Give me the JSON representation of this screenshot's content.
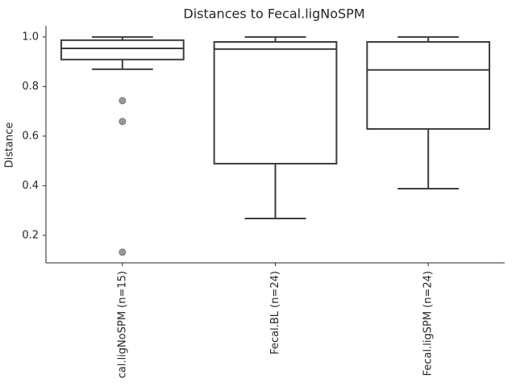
{
  "chart_data": {
    "type": "box",
    "title": "Distances to Fecal.ligNoSPM",
    "y_label": "Distance",
    "categories": [
      "cal.ligNoSPM (n=15)",
      "Fecal.BL (n=24)",
      "Fecal.ligSPM (n=24)"
    ],
    "whisker_low": [
      0.87,
      0.268,
      0.388
    ],
    "q1": [
      0.909,
      0.489,
      0.629
    ],
    "median": [
      0.954,
      0.951,
      0.867
    ],
    "q3": [
      0.987,
      0.98,
      0.98
    ],
    "whisker_high": [
      1.0,
      1.0,
      1.0
    ],
    "outliers": [
      [
        0.743,
        0.659,
        0.132
      ],
      [],
      []
    ],
    "color": "#3d3d3d",
    "outlier_color": "#999999",
    "ylim": [
      0.089,
      1.045
    ],
    "yticks": [
      0.2,
      0.4,
      0.6,
      0.8,
      {
        "value": 1,
        "label": "1.0"
      }
    ],
    "grid": false
  }
}
